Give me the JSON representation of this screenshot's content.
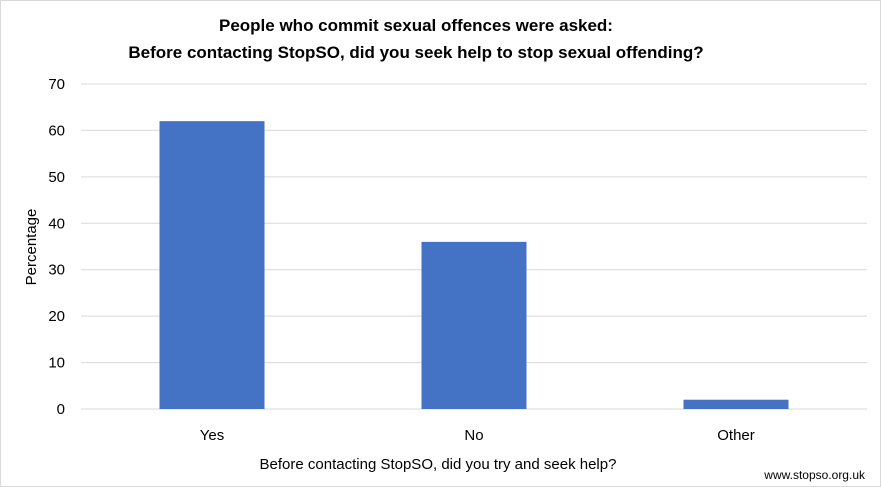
{
  "chart_data": {
    "type": "bar",
    "title_lines": [
      "People who commit sexual offences were asked:",
      "Before contacting  StopSO, did you seek help to stop sexual offending?"
    ],
    "categories": [
      "Yes",
      "No",
      "Other"
    ],
    "values": [
      62,
      36,
      2
    ],
    "xlabel": "Before contacting StopSO, did you try and seek help?",
    "ylabel": "Percentage",
    "ylim": [
      0,
      70
    ],
    "yticks": [
      0,
      10,
      20,
      30,
      40,
      50,
      60,
      70
    ],
    "grid": true,
    "legend": "none",
    "bar_color": "#4472c4",
    "grid_color": "#d9d9d9"
  },
  "footer": {
    "source": "www.stopso.org.uk"
  }
}
